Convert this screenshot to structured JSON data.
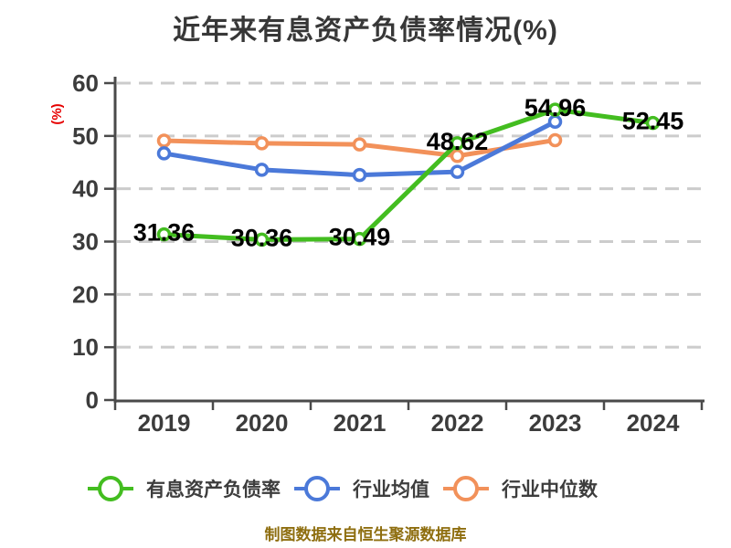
{
  "title": "近年来有息资产负债率情况(%)",
  "footer": "制图数据来自恒生聚源数据库",
  "colors": {
    "grid": "#cccccc",
    "axis": "#4a4a4a",
    "tick_label": "#3c3c3c",
    "data_label": "#000000",
    "title": "#373737",
    "ylabel": "#e60000",
    "footer": "#8e6e0f",
    "background": "#ffffff"
  },
  "chart_data": {
    "type": "line",
    "title": "近年来有息资产负债率情况(%)",
    "xlabel": "",
    "ylabel": "(%)",
    "ylim": [
      0,
      60
    ],
    "yticks": [
      0,
      10,
      20,
      30,
      40,
      50,
      60
    ],
    "grid": "horizontal-dashed",
    "legend_position": "bottom",
    "marker": "circle-white-fill",
    "categories": [
      "2019",
      "2020",
      "2021",
      "2022",
      "2023",
      "2024"
    ],
    "series": [
      {
        "name": "有息资产负债率",
        "color": "#43bd20",
        "values": [
          31.36,
          30.36,
          30.49,
          48.62,
          54.96,
          52.45
        ],
        "point_labels": [
          "31.36",
          "30.36",
          "30.49",
          "48.62",
          "54.96",
          "52.45"
        ]
      },
      {
        "name": "行业均值",
        "color": "#4b79d9",
        "values": [
          46.7,
          43.6,
          42.6,
          43.2,
          52.7,
          null
        ]
      },
      {
        "name": "行业中位数",
        "color": "#f2915a",
        "values": [
          49.1,
          48.6,
          48.4,
          46.2,
          49.2,
          null
        ]
      }
    ]
  }
}
